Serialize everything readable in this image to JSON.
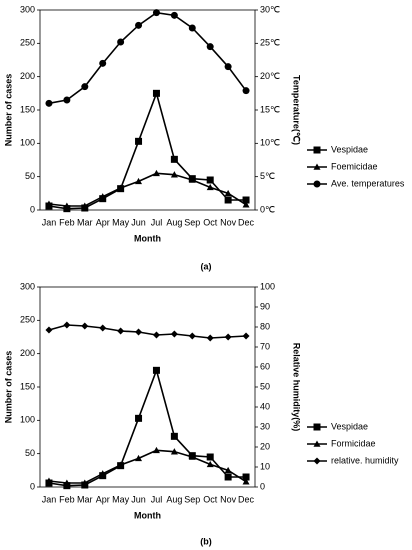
{
  "chart_data": [
    {
      "type": "line",
      "caption": "(a)",
      "xlabel": "Month",
      "ylabel": "Number of cases",
      "y2label": "Temperature(℃)",
      "categories": [
        "Jan",
        "Feb",
        "Mar",
        "Apr",
        "May",
        "Jun",
        "Jul",
        "Aug",
        "Sep",
        "Oct",
        "Nov",
        "Dec"
      ],
      "ylim": [
        0,
        300
      ],
      "yticks": [
        0,
        50,
        100,
        150,
        200,
        250,
        300
      ],
      "y2lim": [
        0,
        30
      ],
      "y2ticks": [
        {
          "value": 0,
          "label": "0℃"
        },
        {
          "value": 5,
          "label": "5℃"
        },
        {
          "value": 10,
          "label": "10℃"
        },
        {
          "value": 15,
          "label": "15℃"
        },
        {
          "value": 20,
          "label": "20℃"
        },
        {
          "value": 25,
          "label": "25℃"
        },
        {
          "value": 30,
          "label": "30℃"
        }
      ],
      "series": [
        {
          "name": "Vespidae",
          "color": "#000000",
          "marker": "square",
          "values": [
            6,
            2,
            3,
            17,
            32,
            103,
            175,
            76,
            47,
            45,
            15,
            15
          ]
        },
        {
          "name": "Foemicidae",
          "color": "#000000",
          "marker": "triangle",
          "values": [
            9,
            6,
            6,
            20,
            33,
            43,
            55,
            53,
            45,
            34,
            25,
            8
          ]
        },
        {
          "name": "Ave. temperatures",
          "color": "#000000",
          "marker": "circle",
          "axis": "y2",
          "values": [
            16,
            16.5,
            18.5,
            22,
            25.2,
            27.7,
            29.6,
            29.2,
            27.3,
            24.5,
            21.5,
            17.9
          ]
        }
      ]
    },
    {
      "type": "line",
      "caption": "(b)",
      "xlabel": "Month",
      "ylabel": "Number of cases",
      "y2label": "Relative humidity(%)",
      "categories": [
        "Jan",
        "Feb",
        "Mar",
        "Apr",
        "May",
        "Jun",
        "Jul",
        "Aug",
        "Sep",
        "Oct",
        "Nov",
        "Dec"
      ],
      "ylim": [
        0,
        300
      ],
      "yticks": [
        0,
        50,
        100,
        150,
        200,
        250,
        300
      ],
      "y2lim": [
        0,
        100
      ],
      "y2ticks": [
        0,
        10,
        20,
        30,
        40,
        50,
        60,
        70,
        80,
        90,
        100
      ],
      "series": [
        {
          "name": "Vespidae",
          "color": "#000000",
          "marker": "square",
          "values": [
            6,
            2,
            3,
            17,
            32,
            103,
            175,
            76,
            47,
            45,
            15,
            15
          ]
        },
        {
          "name": "Formicidae",
          "color": "#000000",
          "marker": "triangle",
          "values": [
            9,
            6,
            6,
            20,
            33,
            43,
            55,
            53,
            45,
            34,
            25,
            8
          ]
        },
        {
          "name": "relative. humidity",
          "color": "#000000",
          "marker": "diamond",
          "axis": "y2",
          "values": [
            78.5,
            81,
            80.5,
            79.5,
            78,
            77.5,
            76,
            76.5,
            75.5,
            74.5,
            75,
            75.5
          ]
        }
      ]
    }
  ]
}
